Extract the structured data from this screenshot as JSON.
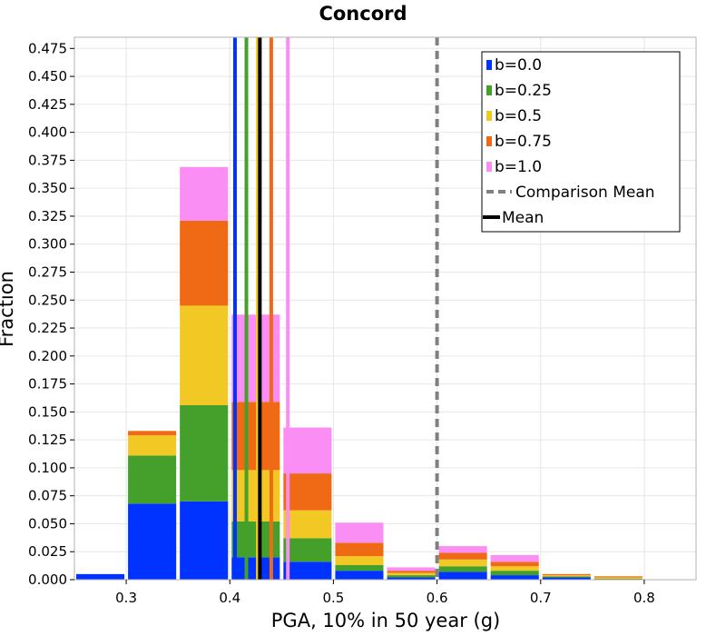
{
  "chart_data": {
    "type": "bar",
    "stacked": true,
    "title": "Concord",
    "xlabel": "PGA, 10% in 50 year (g)",
    "ylabel": "Fraction",
    "xlim": [
      0.25,
      0.85
    ],
    "ylim": [
      0,
      0.485
    ],
    "bin_width": 0.05,
    "x_ticks": [
      0.3,
      0.4,
      0.5,
      0.6,
      0.7,
      0.8
    ],
    "x_tick_labels": [
      "0.3",
      "0.4",
      "0.5",
      "0.6",
      "0.7",
      "0.8"
    ],
    "y_ticks": [
      0.0,
      0.025,
      0.05,
      0.075,
      0.1,
      0.125,
      0.15,
      0.175,
      0.2,
      0.225,
      0.25,
      0.275,
      0.3,
      0.325,
      0.35,
      0.375,
      0.4,
      0.425,
      0.45,
      0.475
    ],
    "y_tick_labels": [
      "0.000",
      "0.025",
      "0.050",
      "0.075",
      "0.100",
      "0.125",
      "0.150",
      "0.175",
      "0.200",
      "0.225",
      "0.250",
      "0.275",
      "0.300",
      "0.325",
      "0.350",
      "0.375",
      "0.400",
      "0.425",
      "0.450",
      "0.475"
    ],
    "grid": true,
    "legend_position": "top-right",
    "bins": [
      0.25,
      0.3,
      0.35,
      0.4,
      0.45,
      0.5,
      0.55,
      0.6,
      0.65,
      0.7,
      0.75,
      0.8
    ],
    "series": [
      {
        "name": "b=0.0",
        "color": "#0033ff",
        "values": [
          0.005,
          0.068,
          0.07,
          0.02,
          0.016,
          0.008,
          0.002,
          0.007,
          0.004,
          0.002,
          0.0,
          0.0
        ]
      },
      {
        "name": "b=0.25",
        "color": "#44a02a",
        "values": [
          0.0,
          0.043,
          0.086,
          0.032,
          0.021,
          0.005,
          0.002,
          0.005,
          0.004,
          0.001,
          0.001,
          0.0
        ]
      },
      {
        "name": "b=0.5",
        "color": "#f2c824",
        "values": [
          0.0,
          0.018,
          0.089,
          0.046,
          0.025,
          0.008,
          0.002,
          0.006,
          0.004,
          0.001,
          0.001,
          0.0
        ]
      },
      {
        "name": "b=0.75",
        "color": "#f06a16",
        "values": [
          0.0,
          0.004,
          0.076,
          0.061,
          0.033,
          0.012,
          0.002,
          0.006,
          0.004,
          0.001,
          0.001,
          0.0
        ]
      },
      {
        "name": "b=1.0",
        "color": "#fb8ef5",
        "values": [
          0.0,
          0.0,
          0.048,
          0.078,
          0.041,
          0.018,
          0.003,
          0.006,
          0.006,
          0.0,
          0.0,
          0.0
        ]
      }
    ],
    "mean_lines": [
      {
        "name": "b=0.0",
        "x": 0.405,
        "color": "#0033ff"
      },
      {
        "name": "b=0.25",
        "x": 0.416,
        "color": "#44a02a"
      },
      {
        "name": "b=0.75",
        "x": 0.44,
        "color": "#f06a16"
      },
      {
        "name": "b=1.0",
        "x": 0.456,
        "color": "#fb8ef5"
      },
      {
        "name": "b=0.5",
        "x": 0.427,
        "color": "#f2c824"
      },
      {
        "name": "Mean",
        "x": 0.429,
        "color": "#000000"
      }
    ],
    "comparison_mean": {
      "name": "Comparison Mean",
      "x": 0.6,
      "color": "#808080"
    },
    "legend": [
      {
        "label": "b=0.0",
        "kind": "swatch",
        "color": "#0033ff"
      },
      {
        "label": "b=0.25",
        "kind": "swatch",
        "color": "#44a02a"
      },
      {
        "label": "b=0.5",
        "kind": "swatch",
        "color": "#f2c824"
      },
      {
        "label": "b=0.75",
        "kind": "swatch",
        "color": "#f06a16"
      },
      {
        "label": "b=1.0",
        "kind": "swatch",
        "color": "#fb8ef5"
      },
      {
        "label": "Comparison Mean",
        "kind": "dashed",
        "color": "#808080"
      },
      {
        "label": "Mean",
        "kind": "solid",
        "color": "#000000"
      }
    ]
  }
}
